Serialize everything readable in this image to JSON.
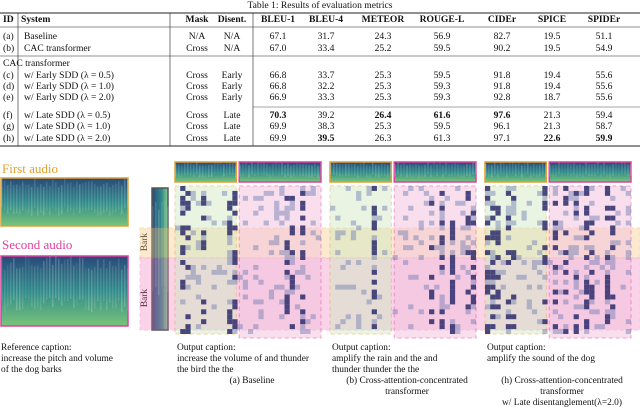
{
  "table": {
    "caption": "Table 1: Results of evaluation metrics",
    "header": [
      "ID",
      "System",
      "Mask",
      "Disent.",
      "BLEU-1",
      "BLEU-4",
      "METEOR",
      "ROUGE-L",
      "CIDEr",
      "SPICE",
      "SPIDEr"
    ],
    "group_label": "CAC transformer",
    "rows": [
      [
        "(a)",
        "Baseline",
        "N/A",
        "N/A",
        "67.1",
        "31.7",
        "24.3",
        "56.9",
        "82.7",
        "19.5",
        "51.1"
      ],
      [
        "(b)",
        "CAC transformer",
        "Cross",
        "N/A",
        "67.0",
        "33.4",
        "25.2",
        "59.5",
        "90.2",
        "19.5",
        "54.9"
      ],
      [
        "(c)",
        "w/ Early SDD (λ = 0.5)",
        "Cross",
        "Early",
        "66.8",
        "33.7",
        "25.3",
        "59.5",
        "91.8",
        "19.4",
        "55.6"
      ],
      [
        "(d)",
        "w/ Early SDD (λ = 1.0)",
        "Cross",
        "Early",
        "66.8",
        "32.2",
        "25.3",
        "59.3",
        "91.8",
        "19.4",
        "55.6"
      ],
      [
        "(e)",
        "w/ Early SDD (λ = 2.0)",
        "Cross",
        "Early",
        "66.9",
        "33.3",
        "25.3",
        "59.3",
        "92.8",
        "18.7",
        "55.6"
      ],
      [
        "(f)",
        "w/ Late SDD (λ = 0.5)",
        "Cross",
        "Late",
        "70.3",
        "39.2",
        "26.4",
        "61.6",
        "97.6",
        "21.3",
        "59.4"
      ],
      [
        "(g)",
        "w/ Late SDD (λ = 1.0)",
        "Cross",
        "Late",
        "69.9",
        "38.3",
        "25.3",
        "59.5",
        "96.1",
        "21.3",
        "58.7"
      ],
      [
        "(h)",
        "w/ Late SDD (λ = 2.0)",
        "Cross",
        "Late",
        "69.9",
        "39.5",
        "26.3",
        "61.3",
        "97.1",
        "22.6",
        "59.9"
      ]
    ],
    "bold": [
      [
        5,
        4
      ],
      [
        5,
        6
      ],
      [
        5,
        7
      ],
      [
        5,
        8
      ],
      [
        7,
        5
      ],
      [
        7,
        9
      ],
      [
        7,
        10
      ]
    ]
  },
  "figure": {
    "first_audio": "First audio",
    "second_audio": "Second audio",
    "bark_labels": [
      "Bark",
      "Bark"
    ],
    "reference_caption": [
      "Reference caption:",
      "increase the pitch and volume",
      "of the dog barks"
    ],
    "panels": [
      {
        "output_caption": [
          "Output caption:",
          "increase the volume of and thunder",
          "the bird the the"
        ],
        "label": [
          "(a) Baseline"
        ]
      },
      {
        "output_caption": [
          "Output caption:",
          "amplify the rain and the and",
          "thunder thunder the the"
        ],
        "label": [
          "(b) Cross-attention-concentrated",
          "transformer"
        ]
      },
      {
        "output_caption": [
          "Output caption:",
          "amplify the sound of the dog"
        ],
        "label": [
          "(h) Cross-attention-concentrated",
          "transformer",
          "w/ Late disentanglement(λ=2.0)"
        ]
      }
    ]
  }
}
